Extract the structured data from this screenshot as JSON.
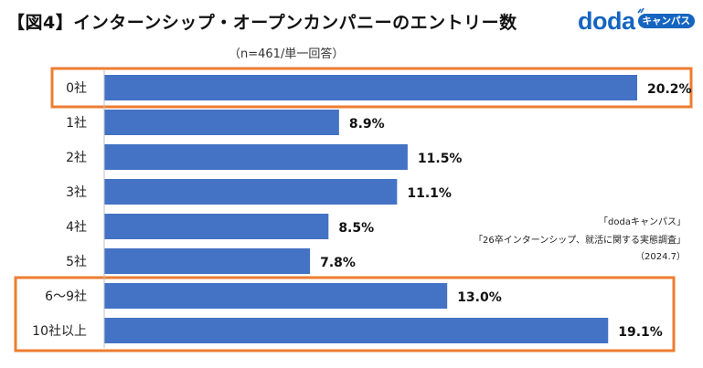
{
  "page": {
    "title": "【図4】インターンシップ・オープンカンパニーのエントリー数",
    "subtitle": "（n=461/単一回答）",
    "logo": {
      "word": "doda",
      "badge": "キャンパス"
    },
    "source": [
      "「dodaキャンパス」",
      "「26卒インターンシップ、就活に関する実態調査」",
      "（2024.7）"
    ]
  },
  "colors": {
    "bar": "#4472c4",
    "highlight": "#ed7d31",
    "brand": "#1565c0"
  },
  "chart_data": {
    "type": "bar",
    "orientation": "horizontal",
    "title": "【図4】インターンシップ・オープンカンパニーのエントリー数",
    "subtitle": "（n=461/単一回答）",
    "categories": [
      "0社",
      "1社",
      "2社",
      "3社",
      "4社",
      "5社",
      "6〜9社",
      "10社以上"
    ],
    "values": [
      20.2,
      8.9,
      11.5,
      11.1,
      8.5,
      7.8,
      13.0,
      19.1
    ],
    "labels": [
      "20.2%",
      "8.9%",
      "11.5%",
      "11.1%",
      "8.5%",
      "7.8%",
      "13.0%",
      "19.1%"
    ],
    "unit": "%",
    "xlim": [
      0,
      20.2
    ],
    "highlight_groups": [
      [
        "0社"
      ],
      [
        "6〜9社",
        "10社以上"
      ]
    ]
  }
}
